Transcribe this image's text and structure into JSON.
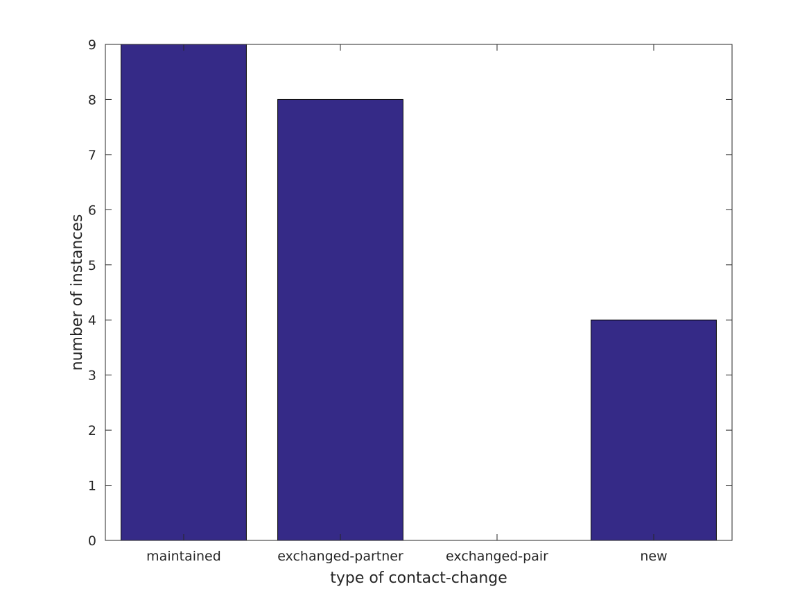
{
  "chart_data": {
    "type": "bar",
    "title": "",
    "xlabel": "type of contact-change",
    "ylabel": "number of instances",
    "categories": [
      "maintained",
      "exchanged-partner",
      "exchanged-pair",
      "new"
    ],
    "values": [
      9,
      8,
      0,
      4
    ],
    "ylim": [
      0,
      9
    ],
    "yticks": [
      "0",
      "1",
      "2",
      "3",
      "4",
      "5",
      "6",
      "7",
      "8",
      "9"
    ],
    "grid": false,
    "bar_color": "#352a87",
    "legend": "none"
  }
}
